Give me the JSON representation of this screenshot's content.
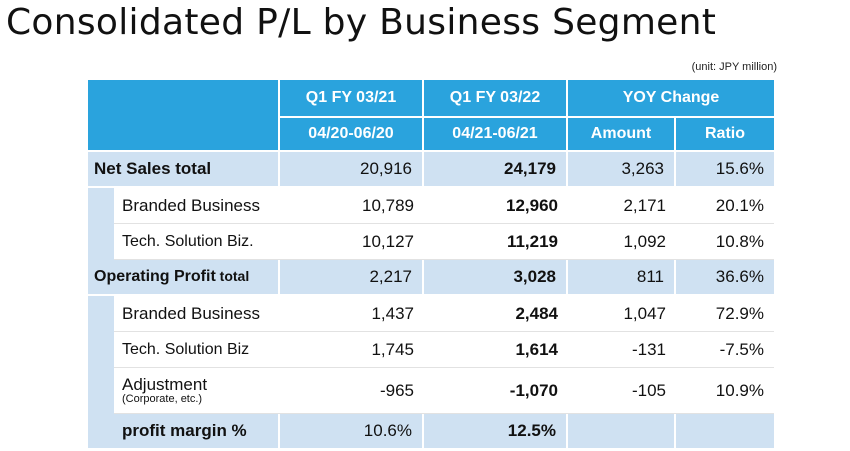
{
  "title": "Consolidated P/L by Business Segment",
  "unit_note": "(unit: JPY million)",
  "header": {
    "col1_top": "Q1 FY 03/21",
    "col2_top": "Q1 FY 03/22",
    "col34_top": "YOY Change",
    "col1_bottom": "04/20-06/20",
    "col2_bottom": "04/21-06/21",
    "col3_bottom": "Amount",
    "col4_bottom": "Ratio"
  },
  "rows": {
    "net_sales": {
      "label": "Net Sales total",
      "fy21": "20,916",
      "fy22": "24,179",
      "amount": "3,263",
      "ratio": "15.6%"
    },
    "ns_branded": {
      "label": "Branded Business",
      "fy21": "10,789",
      "fy22": "12,960",
      "amount": "2,171",
      "ratio": "20.1%"
    },
    "ns_tech": {
      "label": "Tech. Solution Biz.",
      "fy21": "10,127",
      "fy22": "11,219",
      "amount": "1,092",
      "ratio": "10.8%"
    },
    "op_profit": {
      "label": "Operating Profit",
      "label_suffix": " total",
      "fy21": "2,217",
      "fy22": "3,028",
      "amount": "811",
      "ratio": "36.6%"
    },
    "op_branded": {
      "label": "Branded Business",
      "fy21": "1,437",
      "fy22": "2,484",
      "amount": "1,047",
      "ratio": "72.9%"
    },
    "op_tech": {
      "label": "Tech. Solution Biz",
      "fy21": "1,745",
      "fy22": "1,614",
      "amount": "-131",
      "ratio": "-7.5%"
    },
    "adjustment": {
      "label": "Adjustment",
      "sub_label": "(Corporate, etc.)",
      "fy21": "-965",
      "fy22": "-1,070",
      "amount": "-105",
      "ratio": "10.9%"
    },
    "margin": {
      "label": "profit margin %",
      "fy21": "10.6%",
      "fy22": "12.5%"
    }
  }
}
